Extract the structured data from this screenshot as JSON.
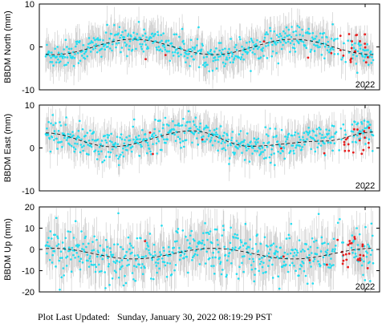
{
  "footer": {
    "label": "Plot Last Updated:",
    "timestamp": "Sunday, January 30, 2022 08:19:29 PST"
  },
  "colors": {
    "point": "#22ddf0",
    "recent_point": "#e81c1c",
    "errorbar": "#c8c8c8",
    "model_line": "#000000"
  },
  "chart_data": [
    {
      "type": "scatter",
      "ylabel": "BBDM North (mm)",
      "ylim": [
        -10,
        10
      ],
      "yticks": [
        -10,
        0,
        10
      ],
      "xtick_label": "2022",
      "model_trend": {
        "mean": 0.0,
        "amplitude": 1.8,
        "phase_shift": -0.5
      },
      "scatter_spread": 1.6,
      "errorbar_halfwidth": 3.5,
      "recent_points_range": [
        -3.8,
        3.2
      ],
      "recent_points_count": 24
    },
    {
      "type": "scatter",
      "ylabel": "BBDM East (mm)",
      "ylim": [
        -10,
        10
      ],
      "yticks": [
        -10,
        0,
        10
      ],
      "xtick_label": "2022",
      "model_trend": {
        "start": 3.5,
        "low": 0.0,
        "high": 4.0,
        "end": 3.7
      },
      "scatter_spread": 1.8,
      "errorbar_halfwidth": 3.2,
      "recent_points_range": [
        -2.0,
        5.0
      ],
      "recent_points_count": 24
    },
    {
      "type": "scatter",
      "ylabel": "BBDM Up (mm)",
      "ylim": [
        -20,
        20
      ],
      "yticks": [
        -20,
        -10,
        0,
        10,
        20
      ],
      "xtick_label": "2022",
      "model_trend": {
        "mean": -2.0,
        "amplitude": 2.5
      },
      "scatter_spread": 6.0,
      "errorbar_halfwidth": 9.0,
      "recent_points_range": [
        -9.0,
        6.0
      ],
      "recent_points_count": 28
    }
  ]
}
